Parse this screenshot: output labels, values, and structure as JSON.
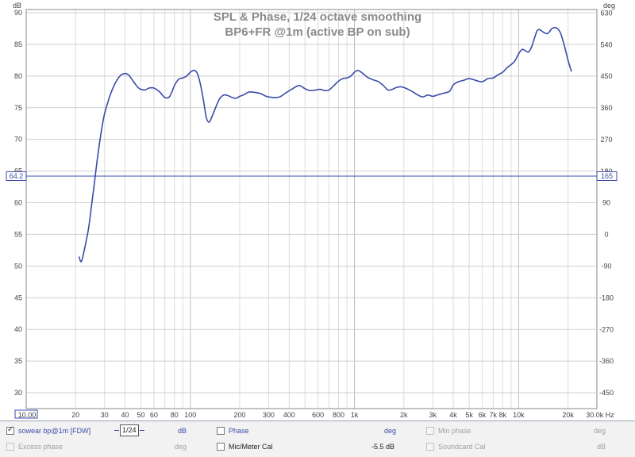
{
  "chart_data": {
    "type": "line",
    "title": "SPL & Phase, 1/24 octave smoothing",
    "subtitle": "BP6+FR @1m (active BP on sub)",
    "x_scale": "log",
    "xlim": [
      10,
      30000
    ],
    "ylim": [
      27.5,
      90.5
    ],
    "y2lim": [
      -495,
      640
    ],
    "ylabel": "dB",
    "y2label": "deg",
    "x_ticks": [
      {
        "v": 10,
        "label": "10.00"
      },
      {
        "v": 20,
        "label": "20"
      },
      {
        "v": 30,
        "label": "30"
      },
      {
        "v": 40,
        "label": "40"
      },
      {
        "v": 50,
        "label": "50"
      },
      {
        "v": 60,
        "label": "60"
      },
      {
        "v": 80,
        "label": "80"
      },
      {
        "v": 100,
        "label": "100"
      },
      {
        "v": 200,
        "label": "200"
      },
      {
        "v": 300,
        "label": "300"
      },
      {
        "v": 400,
        "label": "400"
      },
      {
        "v": 600,
        "label": "600"
      },
      {
        "v": 800,
        "label": "800"
      },
      {
        "v": 1000,
        "label": "1k"
      },
      {
        "v": 2000,
        "label": "2k"
      },
      {
        "v": 3000,
        "label": "3k"
      },
      {
        "v": 4000,
        "label": "4k"
      },
      {
        "v": 5000,
        "label": "5k"
      },
      {
        "v": 6000,
        "label": "6k"
      },
      {
        "v": 7000,
        "label": "7k"
      },
      {
        "v": 8000,
        "label": "8k"
      },
      {
        "v": 10000,
        "label": "10k"
      },
      {
        "v": 20000,
        "label": "20k"
      },
      {
        "v": 30000,
        "label": "30.0k Hz"
      }
    ],
    "y_ticks": [
      30,
      35,
      40,
      45,
      50,
      55,
      60,
      65,
      70,
      75,
      80,
      85,
      90
    ],
    "y2_ticks": [
      -450,
      -360,
      -270,
      -180,
      -90,
      0,
      90,
      180,
      270,
      360,
      450,
      540,
      630
    ],
    "marker": {
      "db": 64.2,
      "db_label": "64.2",
      "deg_label": "165"
    },
    "grid": true,
    "series": [
      {
        "name": "sowear bp@1m [FDW]",
        "color": "#3b4ba8",
        "x": [
          21,
          21.5,
          22,
          23,
          24,
          25,
          26,
          27,
          28,
          29,
          30,
          32,
          34,
          36,
          38,
          40,
          42,
          44,
          46,
          48,
          50,
          53,
          56,
          60,
          65,
          70,
          75,
          80,
          85,
          90,
          95,
          100,
          105,
          110,
          115,
          120,
          125,
          130,
          135,
          140,
          150,
          160,
          170,
          180,
          190,
          200,
          210,
          220,
          230,
          250,
          270,
          290,
          320,
          350,
          380,
          420,
          460,
          500,
          540,
          580,
          620,
          660,
          700,
          750,
          800,
          850,
          900,
          950,
          1000,
          1050,
          1100,
          1150,
          1200,
          1300,
          1400,
          1500,
          1600,
          1700,
          1800,
          1900,
          2000,
          2200,
          2400,
          2600,
          2800,
          3000,
          3200,
          3500,
          3800,
          4000,
          4300,
          4600,
          5000,
          5500,
          6000,
          6500,
          7000,
          7500,
          8000,
          8500,
          9000,
          9500,
          10000,
          10500,
          11000,
          11500,
          12000,
          12500,
          13000,
          13500,
          14000,
          15000,
          16000,
          17000,
          18000,
          19000,
          20000,
          21000
        ],
        "values": [
          51.5,
          50.7,
          51.2,
          53.5,
          56,
          59.5,
          63,
          66.5,
          69.5,
          72,
          74,
          76.5,
          78.3,
          79.5,
          80.2,
          80.4,
          80.2,
          79.5,
          78.8,
          78.2,
          77.9,
          77.8,
          78.1,
          78.1,
          77.5,
          76.6,
          76.8,
          78.5,
          79.5,
          79.7,
          80.0,
          80.6,
          80.9,
          80.5,
          78.8,
          76.3,
          73.5,
          72.7,
          73.5,
          74.5,
          76.3,
          77.0,
          76.9,
          76.6,
          76.5,
          76.8,
          77.0,
          77.3,
          77.5,
          77.4,
          77.2,
          76.8,
          76.6,
          76.7,
          77.3,
          78.0,
          78.5,
          78.0,
          77.7,
          77.8,
          77.9,
          77.7,
          77.8,
          78.5,
          79.2,
          79.6,
          79.7,
          80.0,
          80.6,
          80.9,
          80.6,
          80.2,
          79.8,
          79.4,
          79.1,
          78.5,
          77.8,
          77.9,
          78.2,
          78.3,
          78.2,
          77.7,
          77.1,
          76.7,
          77.0,
          76.8,
          77.0,
          77.3,
          77.6,
          78.6,
          79.1,
          79.3,
          79.6,
          79.3,
          79.1,
          79.6,
          79.7,
          80.2,
          80.6,
          81.3,
          81.8,
          82.4,
          83.5,
          84.2,
          84.0,
          83.8,
          84.6,
          86.0,
          87.2,
          87.3,
          87.0,
          86.7,
          87.5,
          87.6,
          86.8,
          84.8,
          82.5,
          80.7
        ]
      }
    ]
  },
  "legend": {
    "row1": {
      "trace_label": "sowear bp@1m [FDW]",
      "smoothing": "1/24",
      "trace_unit": "dB",
      "phase_label": "Phase",
      "phase_unit": "deg",
      "min_phase_label": "Min phase",
      "min_phase_unit": "deg"
    },
    "row2": {
      "excess_phase_label": "Excess phase",
      "excess_phase_unit": "deg",
      "mic_cal_label": "Mic/Meter Cal",
      "mic_cal_value": "-5.5 dB",
      "soundcard_cal_label": "Soundcard Cal",
      "soundcard_cal_unit": "dB"
    },
    "trace_checked": true,
    "phase_checked": false,
    "mic_cal_checked": false
  }
}
